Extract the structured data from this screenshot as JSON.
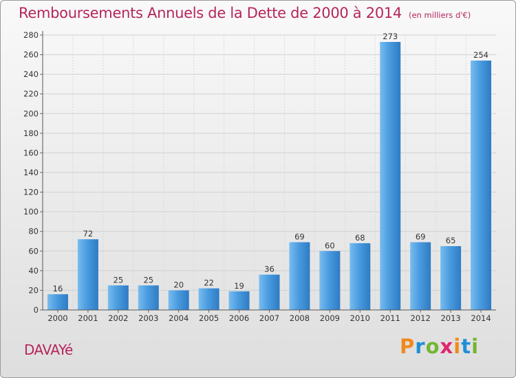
{
  "title": "Remboursements Annuels de la Dette de 2000 à 2014",
  "subtitle": "(en milliers d'€)",
  "commune": "DAVAYé",
  "logo": {
    "p": "P",
    "r": "r",
    "o": "o",
    "x": "x",
    "i1": "i",
    "t": "t",
    "i2": "i"
  },
  "colors": {
    "bar": "#4a9be0",
    "bar_light": "#6ab5ec",
    "title": "#b5255d",
    "grid": "#cfcfcf"
  },
  "chart_data": {
    "type": "bar",
    "categories": [
      "2000",
      "2001",
      "2002",
      "2003",
      "2004",
      "2005",
      "2006",
      "2007",
      "2008",
      "2009",
      "2010",
      "2011",
      "2012",
      "2013",
      "2014"
    ],
    "values": [
      16,
      72,
      25,
      25,
      20,
      22,
      19,
      36,
      69,
      60,
      68,
      273,
      69,
      65,
      254
    ],
    "data_labels": [
      "16",
      "72",
      "25",
      "25",
      "20",
      "22",
      "19",
      "36",
      "69",
      "60",
      "68",
      "273",
      "69",
      "65",
      "254"
    ],
    "yticks": [
      "0",
      "20",
      "40",
      "60",
      "80",
      "100",
      "120",
      "140",
      "160",
      "180",
      "200",
      "220",
      "240",
      "260",
      "280"
    ],
    "ylim": [
      0,
      280
    ],
    "grid": true,
    "xlabel": "",
    "ylabel": ""
  }
}
